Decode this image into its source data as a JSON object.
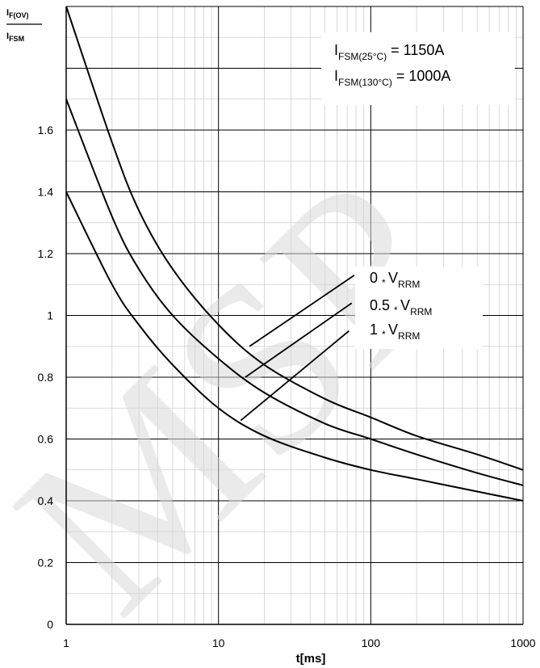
{
  "chart_data": {
    "type": "line",
    "x_scale": "log",
    "xlim": [
      1,
      1000
    ],
    "ylim": [
      0,
      2
    ],
    "x_ticks": [
      1,
      10,
      100,
      1000
    ],
    "x_tick_labels": [
      "1",
      "10",
      "100",
      "1000"
    ],
    "y_ticks": [
      0,
      0.2,
      0.4,
      0.6,
      0.8,
      1,
      1.2,
      1.4,
      1.6
    ],
    "y_tick_labels": [
      "0",
      "0.2",
      "0.4",
      "0.6",
      "0.8",
      "1",
      "1.2",
      "1.4",
      "1.6"
    ],
    "xlabel": "t[ms]",
    "ylabel": {
      "numerator": {
        "base": "I",
        "sub": "F(OV)"
      },
      "denominator": {
        "base": "I",
        "sub": "FSM"
      }
    },
    "grid": true,
    "watermark": "MSP",
    "series": [
      {
        "name": "0 * VRRM",
        "x": [
          1,
          2,
          3,
          5,
          10,
          20,
          50,
          100,
          200,
          500,
          1000
        ],
        "y": [
          2.0,
          1.56,
          1.34,
          1.15,
          0.97,
          0.84,
          0.73,
          0.67,
          0.61,
          0.55,
          0.5
        ]
      },
      {
        "name": "0.5 * VRRM",
        "x": [
          1,
          2,
          3,
          5,
          10,
          20,
          50,
          100,
          200,
          500,
          1000
        ],
        "y": [
          1.7,
          1.32,
          1.15,
          1.0,
          0.86,
          0.75,
          0.65,
          0.6,
          0.55,
          0.49,
          0.45
        ]
      },
      {
        "name": "1 * VRRM",
        "x": [
          1,
          2,
          3,
          5,
          10,
          20,
          50,
          100,
          200,
          500,
          1000
        ],
        "y": [
          1.4,
          1.1,
          0.97,
          0.84,
          0.7,
          0.61,
          0.54,
          0.5,
          0.47,
          0.43,
          0.4
        ]
      }
    ],
    "annotations": {
      "ifsm_25": {
        "base": "I",
        "sub": "FSM(25°C)",
        "value": "= 1150A"
      },
      "ifsm_130": {
        "base": "I",
        "sub": "FSM(130°C)",
        "value": "= 1000A"
      },
      "labels": [
        {
          "coef": "0 ",
          "op": "*",
          "base": "V",
          "sub": "RRM"
        },
        {
          "coef": "0.5 ",
          "op": "*",
          "base": "V",
          "sub": "RRM"
        },
        {
          "coef": "1 ",
          "op": "*",
          "base": "V",
          "sub": "RRM"
        }
      ],
      "leaders": [
        {
          "from": [
            16,
            0.9
          ],
          "to": [
            78,
            1.13
          ]
        },
        {
          "from": [
            15,
            0.8
          ],
          "to": [
            75,
            1.04
          ]
        },
        {
          "from": [
            14,
            0.66
          ],
          "to": [
            72,
            0.95
          ]
        }
      ]
    }
  }
}
